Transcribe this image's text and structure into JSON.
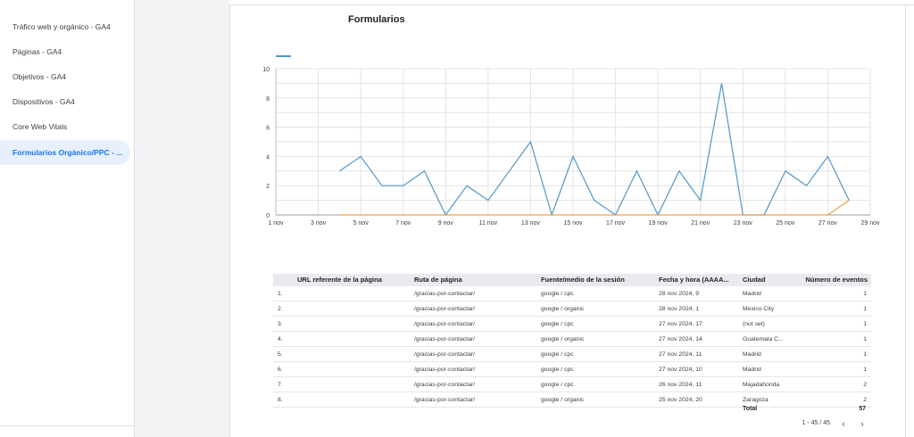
{
  "sidebar": {
    "items": [
      {
        "label": "Tráfico web y orgánico - GA4",
        "active": false
      },
      {
        "label": "Páginas - GA4",
        "active": false
      },
      {
        "label": "Objetivos - GA4",
        "active": false
      },
      {
        "label": "Dispositivos - GA4",
        "active": false
      },
      {
        "label": "Core Web Vitals",
        "active": false
      },
      {
        "label": "Formularios Orgánico/PPC - ...",
        "active": true
      }
    ]
  },
  "report": {
    "title": "Formularios"
  },
  "colors": {
    "series_primary": "#4e96c9",
    "series_secondary": "#f0a04b",
    "active_nav": "#1a73e8"
  },
  "chart_data": {
    "type": "line",
    "title": "Formularios",
    "x": [
      "1 nov",
      "2 nov",
      "3 nov",
      "4 nov",
      "5 nov",
      "6 nov",
      "7 nov",
      "8 nov",
      "9 nov",
      "10 nov",
      "11 nov",
      "12 nov",
      "13 nov",
      "14 nov",
      "15 nov",
      "16 nov",
      "17 nov",
      "18 nov",
      "19 nov",
      "20 nov",
      "21 nov",
      "22 nov",
      "23 nov",
      "24 nov",
      "25 nov",
      "26 nov",
      "27 nov",
      "28 nov",
      "29 nov"
    ],
    "x_tick_labels": [
      "1 nov",
      "3 nov",
      "5 nov",
      "7 nov",
      "9 nov",
      "11 nov",
      "13 nov",
      "15 nov",
      "17 nov",
      "19 nov",
      "21 nov",
      "23 nov",
      "25 nov",
      "27 nov",
      "29 nov"
    ],
    "y_tick_labels": [
      "0",
      "2",
      "4",
      "6",
      "8",
      "10"
    ],
    "ylim": [
      0,
      10
    ],
    "grid": true,
    "series": [
      {
        "values": [
          null,
          null,
          null,
          3,
          4,
          2,
          2,
          3,
          0,
          2,
          1,
          3,
          5,
          0,
          4,
          1,
          0,
          3,
          0,
          3,
          1,
          9,
          0,
          0,
          3,
          2,
          4,
          1,
          null
        ]
      },
      {
        "values": [
          null,
          null,
          null,
          0,
          0,
          0,
          0,
          0,
          0,
          0,
          0,
          0,
          0,
          0,
          0,
          0,
          0,
          0,
          0,
          0,
          0,
          0,
          0,
          0,
          0,
          0,
          0,
          1,
          null
        ]
      }
    ]
  },
  "table": {
    "headers": [
      "URL referente de la página",
      "Ruta de página",
      "Fuente/medio de la sesión",
      "Fecha y hora (AAAA...",
      "Ciudad",
      "Número de eventos"
    ],
    "rows": [
      {
        "idx": "1.",
        "referrer": "",
        "path": "/gracias-por-contactar/",
        "source": "google / cpc",
        "date": "28 nov 2024, 9",
        "city": "Madrid",
        "events": "1"
      },
      {
        "idx": "2.",
        "referrer": "",
        "path": "/gracias-por-contactar/",
        "source": "google / organic",
        "date": "28 nov 2024, 1",
        "city": "Mexico City",
        "events": "1"
      },
      {
        "idx": "3.",
        "referrer": "",
        "path": "/gracias-por-contactar/",
        "source": "google / cpc",
        "date": "27 nov 2024, 17",
        "city": "(not set)",
        "events": "1"
      },
      {
        "idx": "4.",
        "referrer": "",
        "path": "/gracias-por-contactar/",
        "source": "google / organic",
        "date": "27 nov 2024, 14",
        "city": "Guatemala C...",
        "events": "1"
      },
      {
        "idx": "5.",
        "referrer": "",
        "path": "/gracias-por-contactar/",
        "source": "google / cpc",
        "date": "27 nov 2024, 11",
        "city": "Madrid",
        "events": "1"
      },
      {
        "idx": "6.",
        "referrer": "",
        "path": "/gracias-por-contactar/",
        "source": "google / cpc",
        "date": "27 nov 2024, 10",
        "city": "Madrid",
        "events": "1"
      },
      {
        "idx": "7.",
        "referrer": "",
        "path": "/gracias-por-contactar/",
        "source": "google / cpc",
        "date": "26 nov 2024, 11",
        "city": "Majadahonda",
        "events": "2"
      },
      {
        "idx": "8.",
        "referrer": "",
        "path": "/gracias-por-contactar/",
        "source": "google / organic",
        "date": "25 nov 2024, 20",
        "city": "Zaragoza",
        "events": "2"
      }
    ],
    "total_label": "Total",
    "total_value": "57"
  },
  "pagination": {
    "range": "1 - 45 / 45",
    "prev_icon": "‹",
    "next_icon": "›"
  }
}
